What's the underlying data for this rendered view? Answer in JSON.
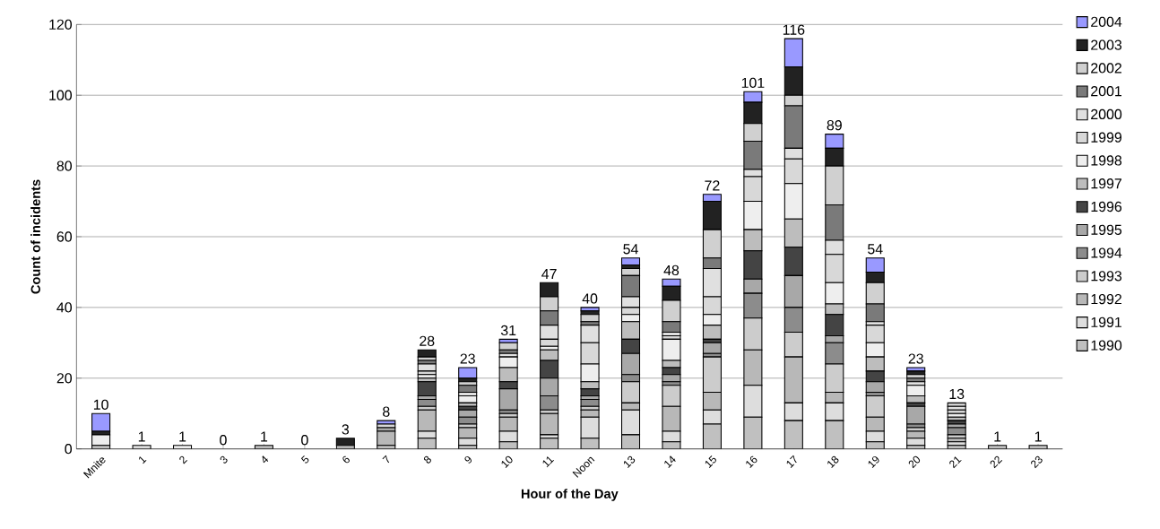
{
  "chart_data": {
    "type": "bar",
    "stacked": true,
    "xlabel": "Hour of the Day",
    "ylabel": "Count of incidents",
    "categories": [
      "Mnite",
      "1",
      "2",
      "3",
      "4",
      "5",
      "6",
      "7",
      "8",
      "9",
      "10",
      "11",
      "Noon",
      "13",
      "14",
      "15",
      "16",
      "17",
      "18",
      "19",
      "20",
      "21",
      "22",
      "23"
    ],
    "ylim": [
      0,
      120
    ],
    "yticks": [
      0,
      20,
      40,
      60,
      80,
      100,
      120
    ],
    "grid": "y",
    "legend": "right",
    "totals": [
      "10",
      "1",
      "1",
      "0",
      "1",
      "0",
      "3",
      "8",
      "28",
      "23",
      "31",
      "47",
      "40",
      "54",
      "48",
      "72",
      "101",
      "116",
      "89",
      "54",
      "23",
      "13",
      "1",
      "1"
    ],
    "series": [
      {
        "name": "1990",
        "color": "#c0c0c0",
        "values": [
          1,
          0,
          0,
          0,
          0,
          0,
          0,
          1,
          3,
          1,
          2,
          3,
          3,
          4,
          2,
          7,
          9,
          8,
          8,
          2,
          1,
          1,
          1,
          1
        ]
      },
      {
        "name": "1991",
        "color": "#dddddd",
        "values": [
          0,
          1,
          0,
          0,
          0,
          0,
          0,
          0,
          2,
          2,
          3,
          1,
          6,
          7,
          3,
          4,
          9,
          5,
          5,
          3,
          2,
          1,
          0,
          0
        ]
      },
      {
        "name": "1992",
        "color": "#b8b8b8",
        "values": [
          0,
          0,
          0,
          0,
          0,
          0,
          1,
          4,
          6,
          3,
          4,
          6,
          2,
          2,
          7,
          5,
          10,
          13,
          3,
          4,
          2,
          1,
          0,
          0
        ]
      },
      {
        "name": "1993",
        "color": "#cccccc",
        "values": [
          0,
          0,
          0,
          0,
          0,
          0,
          0,
          0,
          1,
          1,
          1,
          1,
          1,
          6,
          6,
          10,
          9,
          7,
          8,
          6,
          1,
          1,
          0,
          0
        ]
      },
      {
        "name": "1994",
        "color": "#8c8c8c",
        "values": [
          0,
          0,
          0,
          0,
          0,
          0,
          0,
          0,
          2,
          2,
          1,
          4,
          2,
          2,
          1,
          1,
          7,
          7,
          6,
          1,
          1,
          2,
          0,
          0
        ]
      },
      {
        "name": "1995",
        "color": "#a8a8a8",
        "values": [
          0,
          0,
          0,
          0,
          0,
          0,
          0,
          1,
          1,
          2,
          6,
          5,
          1,
          6,
          2,
          3,
          4,
          9,
          2,
          3,
          5,
          1,
          0,
          0
        ]
      },
      {
        "name": "1996",
        "color": "#444444",
        "values": [
          0,
          0,
          0,
          0,
          0,
          0,
          0,
          0,
          4,
          1,
          2,
          5,
          2,
          4,
          2,
          1,
          8,
          8,
          6,
          3,
          1,
          1,
          0,
          0
        ]
      },
      {
        "name": "1997",
        "color": "#bdbdbd",
        "values": [
          0,
          0,
          0,
          0,
          1,
          0,
          0,
          0,
          1,
          1,
          4,
          3,
          2,
          5,
          2,
          4,
          6,
          8,
          3,
          4,
          2,
          1,
          0,
          0
        ]
      },
      {
        "name": "1998",
        "color": "#eeeeee",
        "values": [
          3,
          0,
          1,
          0,
          0,
          0,
          0,
          0,
          1,
          2,
          3,
          1,
          5,
          2,
          6,
          3,
          8,
          10,
          6,
          4,
          3,
          1,
          0,
          0
        ]
      },
      {
        "name": "1999",
        "color": "#d8d8d8",
        "values": [
          0,
          0,
          0,
          0,
          0,
          0,
          0,
          1,
          1,
          0,
          0,
          2,
          6,
          2,
          1,
          5,
          7,
          7,
          8,
          5,
          0,
          1,
          0,
          0
        ]
      },
      {
        "name": "2000",
        "color": "#e0e0e0",
        "values": [
          0,
          0,
          0,
          0,
          0,
          0,
          0,
          0,
          2,
          1,
          1,
          4,
          5,
          3,
          1,
          8,
          2,
          3,
          4,
          1,
          1,
          1,
          0,
          0
        ]
      },
      {
        "name": "2001",
        "color": "#7a7a7a",
        "values": [
          0,
          0,
          0,
          0,
          0,
          0,
          0,
          0,
          1,
          2,
          1,
          4,
          1,
          6,
          3,
          3,
          8,
          12,
          10,
          5,
          1,
          0,
          0,
          0
        ]
      },
      {
        "name": "2002",
        "color": "#d0d0d0",
        "values": [
          0,
          0,
          0,
          0,
          0,
          0,
          0,
          0,
          1,
          1,
          2,
          4,
          2,
          2,
          6,
          8,
          5,
          3,
          11,
          6,
          1,
          1,
          0,
          0
        ]
      },
      {
        "name": "2003",
        "color": "#222222",
        "values": [
          1,
          0,
          0,
          0,
          0,
          0,
          2,
          0,
          2,
          1,
          0,
          4,
          1,
          1,
          4,
          8,
          6,
          8,
          5,
          3,
          1,
          0,
          0,
          0
        ]
      },
      {
        "name": "2004",
        "color": "#9999ff",
        "values": [
          5,
          0,
          0,
          0,
          0,
          0,
          0,
          1,
          0,
          3,
          1,
          0,
          1,
          2,
          2,
          2,
          3,
          8,
          4,
          4,
          1,
          0,
          0,
          0
        ]
      }
    ]
  }
}
